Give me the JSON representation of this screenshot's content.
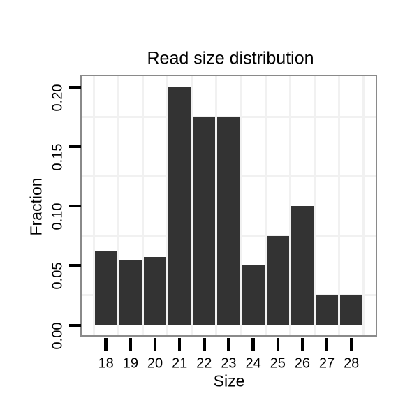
{
  "chart_data": {
    "type": "bar",
    "title": "Read size distribution",
    "xlabel": "Size",
    "ylabel": "Fraction",
    "categories": [
      "18",
      "19",
      "20",
      "21",
      "22",
      "23",
      "24",
      "25",
      "26",
      "27",
      "28"
    ],
    "values": [
      0.062,
      0.054,
      0.057,
      0.2,
      0.175,
      0.175,
      0.05,
      0.075,
      0.1,
      0.025,
      0.025
    ],
    "y_tick_labels": [
      "0.00",
      "0.05",
      "0.10",
      "0.15",
      "0.20"
    ],
    "y_tick_values": [
      0,
      0.05,
      0.1,
      0.15,
      0.2
    ],
    "ylim": [
      0,
      0.209
    ],
    "minor_gridlines_y": [
      0.025,
      0.075,
      0.125,
      0.175
    ],
    "grid": true,
    "legend": "none",
    "colors": {
      "bar_fill": "#333333",
      "panel_border": "#8a8a8a",
      "gridline": "#f1f1f1",
      "tick": "#000000",
      "text": "#000000",
      "background": "#ffffff"
    }
  }
}
